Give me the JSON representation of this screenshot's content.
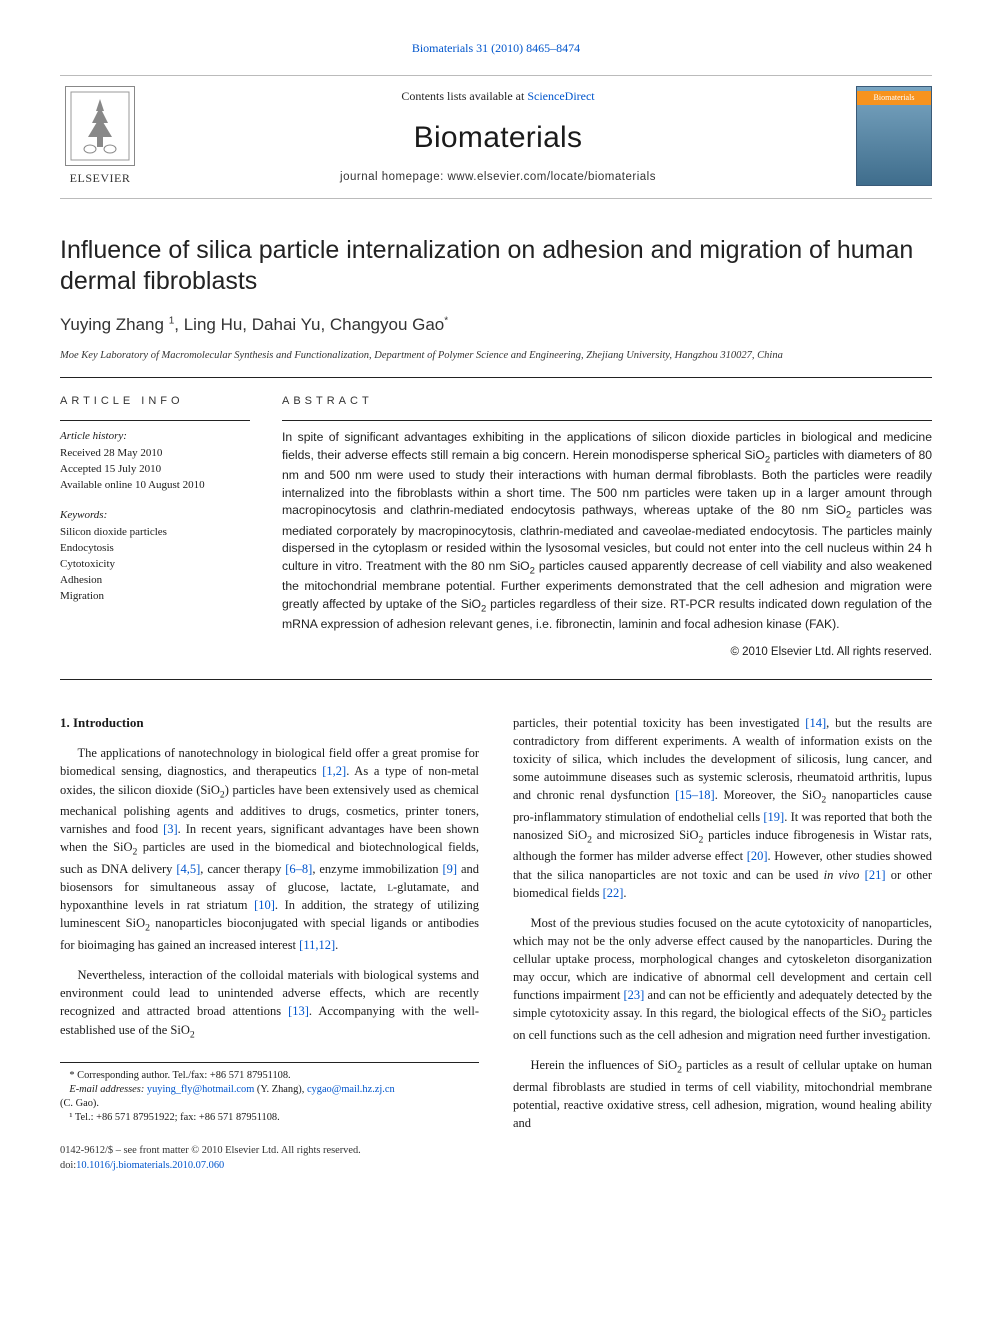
{
  "citation": {
    "journal": "Biomaterials",
    "vol_pages": "31 (2010) 8465–8474"
  },
  "header": {
    "contents_prefix": "Contents lists available at ",
    "contents_site": "ScienceDirect",
    "journal_name": "Biomaterials",
    "homepage_prefix": "journal homepage: ",
    "homepage_url": "www.elsevier.com/locate/biomaterials",
    "publisher": "ELSEVIER",
    "cover_label": "Biomaterials"
  },
  "article": {
    "title": "Influence of silica particle internalization on adhesion and migration of human dermal fibroblasts",
    "authors_html": "Yuying Zhang <sup>1</sup>, Ling Hu, Dahai Yu, Changyou Gao<sup>*</sup>",
    "affiliation": "Moe Key Laboratory of Macromolecular Synthesis and Functionalization, Department of Polymer Science and Engineering, Zhejiang University, Hangzhou 310027, China"
  },
  "info": {
    "label": "ARTICLE INFO",
    "history_head": "Article history:",
    "received": "Received 28 May 2010",
    "accepted": "Accepted 15 July 2010",
    "online": "Available online 10 August 2010",
    "keywords_head": "Keywords:",
    "keywords": [
      "Silicon dioxide particles",
      "Endocytosis",
      "Cytotoxicity",
      "Adhesion",
      "Migration"
    ]
  },
  "abstract": {
    "label": "ABSTRACT",
    "text": "In spite of significant advantages exhibiting in the applications of silicon dioxide particles in biological and medicine fields, their adverse effects still remain a big concern. Herein monodisperse spherical SiO₂ particles with diameters of 80 nm and 500 nm were used to study their interactions with human dermal fibroblasts. Both the particles were readily internalized into the fibroblasts within a short time. The 500 nm particles were taken up in a larger amount through macropinocytosis and clathrin-mediated endocytosis pathways, whereas uptake of the 80 nm SiO₂ particles was mediated corporately by macropinocytosis, clathrin-mediated and caveolae-mediated endocytosis. The particles mainly dispersed in the cytoplasm or resided within the lysosomal vesicles, but could not enter into the cell nucleus within 24 h culture in vitro. Treatment with the 80 nm SiO₂ particles caused apparently decrease of cell viability and also weakened the mitochondrial membrane potential. Further experiments demonstrated that the cell adhesion and migration were greatly affected by uptake of the SiO₂ particles regardless of their size. RT-PCR results indicated down regulation of the mRNA expression of adhesion relevant genes, i.e. fibronectin, laminin and focal adhesion kinase (FAK).",
    "copyright": "© 2010 Elsevier Ltd. All rights reserved."
  },
  "body": {
    "heading": "1.  Introduction",
    "p1": "The applications of nanotechnology in biological field offer a great promise for biomedical sensing, diagnostics, and therapeutics [1,2]. As a type of non-metal oxides, the silicon dioxide (SiO₂) particles have been extensively used as chemical mechanical polishing agents and additives to drugs, cosmetics, printer toners, varnishes and food [3]. In recent years, significant advantages have been shown when the SiO₂ particles are used in the biomedical and biotechnological fields, such as DNA delivery [4,5], cancer therapy [6–8], enzyme immobilization [9] and biosensors for simultaneous assay of glucose, lactate, ʟ-glutamate, and hypoxanthine levels in rat striatum [10]. In addition, the strategy of utilizing luminescent SiO₂ nanoparticles bioconjugated with special ligands or antibodies for bioimaging has gained an increased interest [11,12].",
    "p2": "Nevertheless, interaction of the colloidal materials with biological systems and environment could lead to unintended adverse effects, which are recently recognized and attracted broad attentions [13]. Accompanying with the well-established use of the SiO₂",
    "p3_cont": "particles, their potential toxicity has been investigated [14], but the results are contradictory from different experiments. A wealth of information exists on the toxicity of silica, which includes the development of silicosis, lung cancer, and some autoimmune diseases such as systemic sclerosis, rheumatoid arthritis, lupus and chronic renal dysfunction [15–18]. Moreover, the SiO₂ nanoparticles cause pro-inflammatory stimulation of endothelial cells [19]. It was reported that both the nanosized SiO₂ and microsized SiO₂ particles induce fibrogenesis in Wistar rats, although the former has milder adverse effect [20]. However, other studies showed that the silica nanoparticles are not toxic and can be used in vivo [21] or other biomedical fields [22].",
    "p4": "Most of the previous studies focused on the acute cytotoxicity of nanoparticles, which may not be the only adverse effect caused by the nanoparticles. During the cellular uptake process, morphological changes and cytoskeleton disorganization may occur, which are indicative of abnormal cell development and certain cell functions impairment [23] and can not be efficiently and adequately detected by the simple cytotoxicity assay. In this regard, the biological effects of the SiO₂ particles on cell functions such as the cell adhesion and migration need further investigation.",
    "p5": "Herein the influences of SiO₂ particles as a result of cellular uptake on human dermal fibroblasts are studied in terms of cell viability, mitochondrial membrane potential, reactive oxidative stress, cell adhesion, migration, wound healing ability and"
  },
  "footnotes": {
    "corr": "* Corresponding author. Tel./fax: +86 571 87951108.",
    "emails_prefix": "E-mail addresses: ",
    "email1": "yuying_fly@hotmail.com",
    "email1_who": " (Y. Zhang), ",
    "email2": "cygao@mail.hz.zj.cn",
    "email2_who": " (C. Gao).",
    "fn1": "¹ Tel.: +86 571 87951922; fax: +86 571 87951108."
  },
  "frontmatter": {
    "line1": "0142-9612/$ – see front matter © 2010 Elsevier Ltd. All rights reserved.",
    "doi_prefix": "doi:",
    "doi": "10.1016/j.biomaterials.2010.07.060"
  },
  "refs_links": {
    "r1_2": "[1,2]",
    "r3": "[3]",
    "r4_5": "[4,5]",
    "r6_8": "[6–8]",
    "r9": "[9]",
    "r10": "[10]",
    "r11_12": "[11,12]",
    "r13": "[13]",
    "r14": "[14]",
    "r15_18": "[15–18]",
    "r19": "[19]",
    "r20": "[20]",
    "r21": "[21]",
    "r22": "[22]",
    "r23": "[23]"
  },
  "colors": {
    "link": "#0055cc",
    "rule": "#222222",
    "cover_top": "#7aa6c2",
    "cover_bottom": "#3f6d8c",
    "cover_orange": "#f7931e"
  },
  "typography": {
    "body_pt": 12.5,
    "title_pt": 25,
    "authors_pt": 17,
    "journal_name_pt": 30,
    "section_label_pt": 11,
    "abstract_pt": 12.2,
    "footnote_pt": 10.4
  }
}
